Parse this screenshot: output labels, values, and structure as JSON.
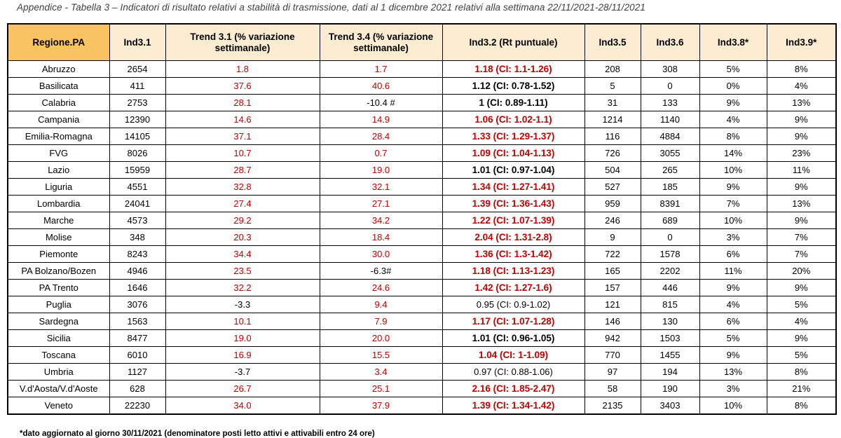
{
  "title": "Appendice - Tabella 3 – Indicatori di risultato relativi a stabilità di trasmissione, dati al 1 dicembre 2021 relativi alla settimana 22/11/2021-28/11/2021",
  "footnote": "*dato aggiornato al giorno 30/11/2021 (denominatore posti letto attivi e attivabili entro 24 ore)",
  "colors": {
    "accent_red": "#C00000",
    "header_fill_first": "#F9C262",
    "header_fill": "#FCEDD2",
    "border": "#000000"
  },
  "table": {
    "columns": [
      "Regione.PA",
      "Ind3.1",
      "Trend 3.1 (% variazione settimanale)",
      "Trend 3.4 (% variazione settimanale)",
      "Ind3.2 (Rt puntuale)",
      "Ind3.5",
      "Ind3.6",
      "Ind3.8*",
      "Ind3.9*"
    ],
    "rows": [
      {
        "regione": "Abruzzo",
        "ind31": "2654",
        "trend31": "1.8",
        "trend31_style": "red",
        "trend34": "1.7",
        "trend34_style": "red",
        "rt": "1.18 (CI: 1.1-1.26)",
        "rt_style": "red-bold",
        "ind35": "208",
        "ind36": "308",
        "ind38": "5%",
        "ind39": "8%"
      },
      {
        "regione": "Basilicata",
        "ind31": "411",
        "trend31": "37.6",
        "trend31_style": "red",
        "trend34": "40.6",
        "trend34_style": "red",
        "rt": "1.12 (CI: 0.78-1.52)",
        "rt_style": "black-bold",
        "ind35": "5",
        "ind36": "0",
        "ind38": "0%",
        "ind39": "4%"
      },
      {
        "regione": "Calabria",
        "ind31": "2753",
        "trend31": "28.1",
        "trend31_style": "red",
        "trend34": "-10.4 #",
        "trend34_style": "black",
        "rt": "1 (CI: 0.89-1.11)",
        "rt_style": "black-bold",
        "ind35": "31",
        "ind36": "133",
        "ind38": "9%",
        "ind39": "13%"
      },
      {
        "regione": "Campania",
        "ind31": "12390",
        "trend31": "14.6",
        "trend31_style": "red",
        "trend34": "14.9",
        "trend34_style": "red",
        "rt": "1.06 (CI: 1.02-1.1)",
        "rt_style": "red-bold",
        "ind35": "1214",
        "ind36": "1140",
        "ind38": "4%",
        "ind39": "9%"
      },
      {
        "regione": "Emilia-Romagna",
        "ind31": "14105",
        "trend31": "37.1",
        "trend31_style": "red",
        "trend34": "28.4",
        "trend34_style": "red",
        "rt": "1.33 (CI: 1.29-1.37)",
        "rt_style": "red-bold",
        "ind35": "116",
        "ind36": "4884",
        "ind38": "8%",
        "ind39": "9%"
      },
      {
        "regione": "FVG",
        "ind31": "8026",
        "trend31": "10.7",
        "trend31_style": "red",
        "trend34": "0.7",
        "trend34_style": "red",
        "rt": "1.09 (CI: 1.04-1.13)",
        "rt_style": "red-bold",
        "ind35": "726",
        "ind36": "3055",
        "ind38": "14%",
        "ind39": "23%"
      },
      {
        "regione": "Lazio",
        "ind31": "15959",
        "trend31": "28.7",
        "trend31_style": "red",
        "trend34": "19.0",
        "trend34_style": "red",
        "rt": "1.01 (CI: 0.97-1.04)",
        "rt_style": "black-bold",
        "ind35": "504",
        "ind36": "265",
        "ind38": "10%",
        "ind39": "11%"
      },
      {
        "regione": "Liguria",
        "ind31": "4551",
        "trend31": "32.8",
        "trend31_style": "red",
        "trend34": "32.1",
        "trend34_style": "red",
        "rt": "1.34 (CI: 1.27-1.41)",
        "rt_style": "red-bold",
        "ind35": "527",
        "ind36": "185",
        "ind38": "9%",
        "ind39": "9%"
      },
      {
        "regione": "Lombardia",
        "ind31": "24041",
        "trend31": "27.4",
        "trend31_style": "red",
        "trend34": "27.1",
        "trend34_style": "red",
        "rt": "1.39 (CI: 1.36-1.43)",
        "rt_style": "red-bold",
        "ind35": "959",
        "ind36": "8391",
        "ind38": "7%",
        "ind39": "13%"
      },
      {
        "regione": "Marche",
        "ind31": "4573",
        "trend31": "29.2",
        "trend31_style": "red",
        "trend34": "34.2",
        "trend34_style": "red",
        "rt": "1.22 (CI: 1.07-1.39)",
        "rt_style": "red-bold",
        "ind35": "246",
        "ind36": "689",
        "ind38": "10%",
        "ind39": "9%"
      },
      {
        "regione": "Molise",
        "ind31": "348",
        "trend31": "20.3",
        "trend31_style": "red",
        "trend34": "18.4",
        "trend34_style": "red",
        "rt": "2.04 (CI: 1.31-2.8)",
        "rt_style": "red-bold",
        "ind35": "9",
        "ind36": "0",
        "ind38": "3%",
        "ind39": "7%"
      },
      {
        "regione": "Piemonte",
        "ind31": "8243",
        "trend31": "34.4",
        "trend31_style": "red",
        "trend34": "30.0",
        "trend34_style": "red",
        "rt": "1.36 (CI: 1.3-1.42)",
        "rt_style": "red-bold",
        "ind35": "722",
        "ind36": "1578",
        "ind38": "6%",
        "ind39": "7%"
      },
      {
        "regione": "PA Bolzano/Bozen",
        "ind31": "4946",
        "trend31": "23.5",
        "trend31_style": "red",
        "trend34": "-6.3#",
        "trend34_style": "black",
        "rt": "1.18 (CI: 1.13-1.23)",
        "rt_style": "red-bold",
        "ind35": "165",
        "ind36": "2202",
        "ind38": "11%",
        "ind39": "20%"
      },
      {
        "regione": "PA Trento",
        "ind31": "1646",
        "trend31": "32.2",
        "trend31_style": "red",
        "trend34": "24.6",
        "trend34_style": "red",
        "rt": "1.42 (CI: 1.27-1.6)",
        "rt_style": "red-bold",
        "ind35": "157",
        "ind36": "446",
        "ind38": "9%",
        "ind39": "9%"
      },
      {
        "regione": "Puglia",
        "ind31": "3076",
        "trend31": "-3.3",
        "trend31_style": "black",
        "trend34": "9.4",
        "trend34_style": "red",
        "rt": "0.95 (CI: 0.9-1.02)",
        "rt_style": "black",
        "ind35": "121",
        "ind36": "815",
        "ind38": "4%",
        "ind39": "5%"
      },
      {
        "regione": "Sardegna",
        "ind31": "1563",
        "trend31": "10.1",
        "trend31_style": "red",
        "trend34": "7.9",
        "trend34_style": "red",
        "rt": "1.17 (CI: 1.07-1.28)",
        "rt_style": "red-bold",
        "ind35": "146",
        "ind36": "130",
        "ind38": "6%",
        "ind39": "4%"
      },
      {
        "regione": "Sicilia",
        "ind31": "8477",
        "trend31": "19.0",
        "trend31_style": "red",
        "trend34": "20.0",
        "trend34_style": "red",
        "rt": "1.01 (CI: 0.96-1.05)",
        "rt_style": "black-bold",
        "ind35": "942",
        "ind36": "1503",
        "ind38": "5%",
        "ind39": "9%"
      },
      {
        "regione": "Toscana",
        "ind31": "6010",
        "trend31": "16.9",
        "trend31_style": "red",
        "trend34": "15.5",
        "trend34_style": "red",
        "rt": "1.04 (CI: 1-1.09)",
        "rt_style": "red-bold",
        "ind35": "770",
        "ind36": "1455",
        "ind38": "9%",
        "ind39": "5%"
      },
      {
        "regione": "Umbria",
        "ind31": "1127",
        "trend31": "-3.7",
        "trend31_style": "black",
        "trend34": "3.4",
        "trend34_style": "red",
        "rt": "0.97 (CI: 0.88-1.06)",
        "rt_style": "black",
        "ind35": "97",
        "ind36": "194",
        "ind38": "13%",
        "ind39": "8%"
      },
      {
        "regione": "V.d'Aosta/V.d'Aoste",
        "ind31": "628",
        "trend31": "26.7",
        "trend31_style": "red",
        "trend34": "25.1",
        "trend34_style": "red",
        "rt": "2.16 (CI: 1.85-2.47)",
        "rt_style": "red-bold",
        "ind35": "58",
        "ind36": "190",
        "ind38": "3%",
        "ind39": "21%"
      },
      {
        "regione": "Veneto",
        "ind31": "22230",
        "trend31": "34.0",
        "trend31_style": "red",
        "trend34": "37.9",
        "trend34_style": "red",
        "rt": "1.39 (CI: 1.34-1.42)",
        "rt_style": "red-bold",
        "ind35": "2135",
        "ind36": "3403",
        "ind38": "10%",
        "ind39": "8%"
      }
    ]
  }
}
